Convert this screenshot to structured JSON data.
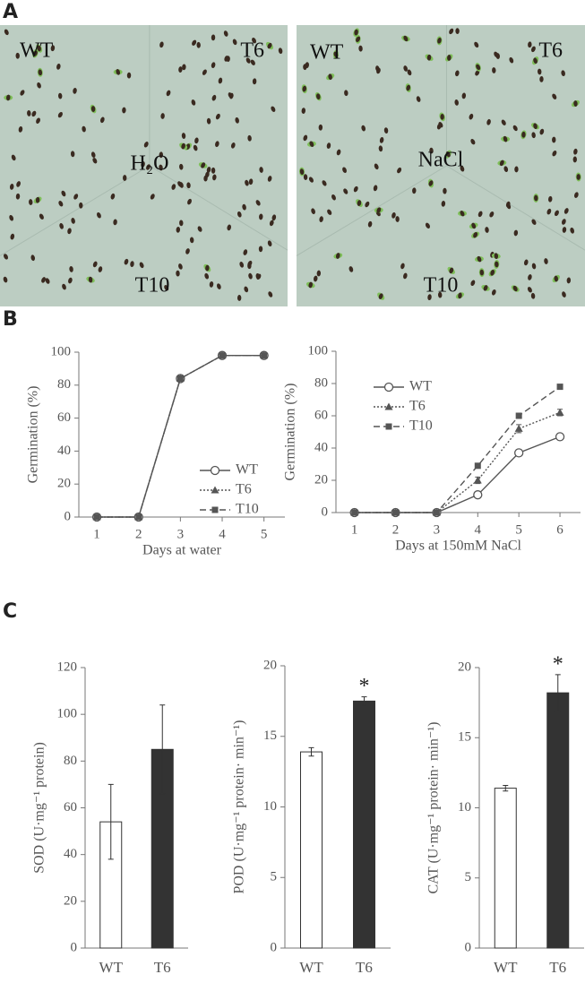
{
  "panel_labels": [
    "A",
    "B",
    "C"
  ],
  "photos": [
    {
      "labels": [
        "WT",
        "T6",
        "H₂O",
        "T10"
      ]
    },
    {
      "labels": [
        "WT",
        "T6",
        "NaCl",
        "T10"
      ]
    }
  ],
  "chart_data": [
    {
      "type": "line",
      "x": [
        1,
        2,
        3,
        4,
        5
      ],
      "xlim": [
        0.57,
        5.5
      ],
      "xticks": [
        1,
        2,
        3,
        4,
        5
      ],
      "ylim": [
        0,
        100
      ],
      "yticks": [
        0,
        20,
        40,
        60,
        80,
        100
      ],
      "xlabel": "Days at water",
      "ylabel": "Germination (%)",
      "legend": "lower right",
      "series": [
        {
          "name": "WT",
          "color": "#555555",
          "marker": "circle-open",
          "dash": "solid",
          "values": [
            0,
            0,
            84,
            98,
            98
          ]
        },
        {
          "name": "T6",
          "color": "#555555",
          "marker": "triangle",
          "dash": "dotted",
          "values": [
            0,
            0,
            84,
            98,
            98
          ]
        },
        {
          "name": "T10",
          "color": "#555555",
          "marker": "square",
          "dash": "dashed",
          "values": [
            0,
            0,
            84,
            98,
            98
          ]
        }
      ]
    },
    {
      "type": "line",
      "x": [
        1,
        2,
        3,
        4,
        5,
        6
      ],
      "xlim": [
        0.55,
        6.5
      ],
      "xticks": [
        1,
        2,
        3,
        4,
        5,
        6
      ],
      "ylim": [
        0,
        100
      ],
      "yticks": [
        0,
        20,
        40,
        60,
        80,
        100
      ],
      "xlabel": "Days at 150mM NaCl",
      "ylabel": "Germination (%)",
      "legend": "upper left",
      "series": [
        {
          "name": "WT",
          "color": "#555555",
          "marker": "circle-open",
          "dash": "solid",
          "values": [
            0,
            0,
            0,
            11,
            37,
            47
          ],
          "errors": [
            0,
            0,
            0,
            1.5,
            2,
            2
          ]
        },
        {
          "name": "T6",
          "color": "#555555",
          "marker": "triangle",
          "dash": "dotted",
          "values": [
            0,
            0,
            0,
            20,
            52,
            62
          ],
          "errors": [
            0,
            0,
            0,
            2,
            2.5,
            2
          ]
        },
        {
          "name": "T10",
          "color": "#555555",
          "marker": "square",
          "dash": "dashed",
          "values": [
            0,
            0,
            0,
            29,
            60,
            78
          ],
          "errors": [
            0,
            0,
            0,
            1,
            1,
            1
          ]
        }
      ]
    },
    {
      "type": "bar",
      "categories": [
        "WT",
        "T6"
      ],
      "values": [
        54,
        85
      ],
      "errors": [
        16,
        19
      ],
      "colors": [
        "#ffffff",
        "#333333"
      ],
      "ylim": [
        0,
        120
      ],
      "yticks": [
        0,
        20,
        40,
        60,
        80,
        100,
        120
      ],
      "ylabel": "SOD (U·mg⁻¹ protein)"
    },
    {
      "type": "bar",
      "categories": [
        "WT",
        "T6"
      ],
      "values": [
        13.9,
        17.5
      ],
      "errors": [
        0.3,
        0.3
      ],
      "colors": [
        "#ffffff",
        "#333333"
      ],
      "ylim": [
        0,
        20
      ],
      "yticks": [
        0,
        5,
        10,
        15,
        20
      ],
      "ylabel": "POD (U·mg⁻¹ protein· min⁻¹)",
      "annotation": "*"
    },
    {
      "type": "bar",
      "categories": [
        "WT",
        "T6"
      ],
      "values": [
        11.4,
        18.2
      ],
      "errors": [
        0.2,
        1.3
      ],
      "colors": [
        "#ffffff",
        "#333333"
      ],
      "ylim": [
        0,
        20
      ],
      "yticks": [
        0,
        5,
        10,
        15,
        20
      ],
      "ylabel": "CAT (U·mg⁻¹ protein· min⁻¹)",
      "annotation": "*"
    }
  ]
}
